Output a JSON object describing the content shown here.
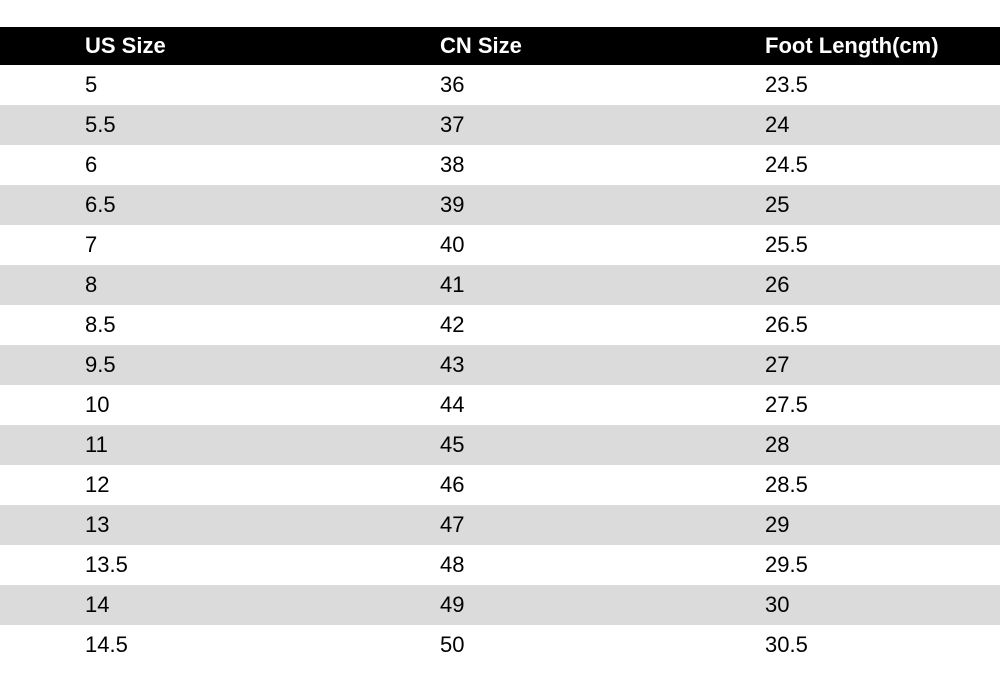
{
  "colors": {
    "header_bg": "#000000",
    "header_text": "#ffffff",
    "row_bg": "#ffffff",
    "row_alt_bg": "#dbdbdb",
    "text": "#000000"
  },
  "chart_data": {
    "type": "table",
    "columns": [
      {
        "key": "us",
        "label": "US Size"
      },
      {
        "key": "cn",
        "label": "CN Size"
      },
      {
        "key": "foot",
        "label": "Foot Length(cm)"
      }
    ],
    "rows": [
      {
        "us": "5",
        "cn": "36",
        "foot": "23.5"
      },
      {
        "us": "5.5",
        "cn": "37",
        "foot": "24"
      },
      {
        "us": "6",
        "cn": "38",
        "foot": "24.5"
      },
      {
        "us": "6.5",
        "cn": "39",
        "foot": "25"
      },
      {
        "us": "7",
        "cn": "40",
        "foot": "25.5"
      },
      {
        "us": "8",
        "cn": "41",
        "foot": "26"
      },
      {
        "us": "8.5",
        "cn": "42",
        "foot": "26.5"
      },
      {
        "us": "9.5",
        "cn": "43",
        "foot": "27"
      },
      {
        "us": "10",
        "cn": "44",
        "foot": "27.5"
      },
      {
        "us": "11",
        "cn": "45",
        "foot": "28"
      },
      {
        "us": "12",
        "cn": "46",
        "foot": "28.5"
      },
      {
        "us": "13",
        "cn": "47",
        "foot": "29"
      },
      {
        "us": "13.5",
        "cn": "48",
        "foot": "29.5"
      },
      {
        "us": "14",
        "cn": "49",
        "foot": "30"
      },
      {
        "us": "14.5",
        "cn": "50",
        "foot": "30.5"
      }
    ]
  }
}
